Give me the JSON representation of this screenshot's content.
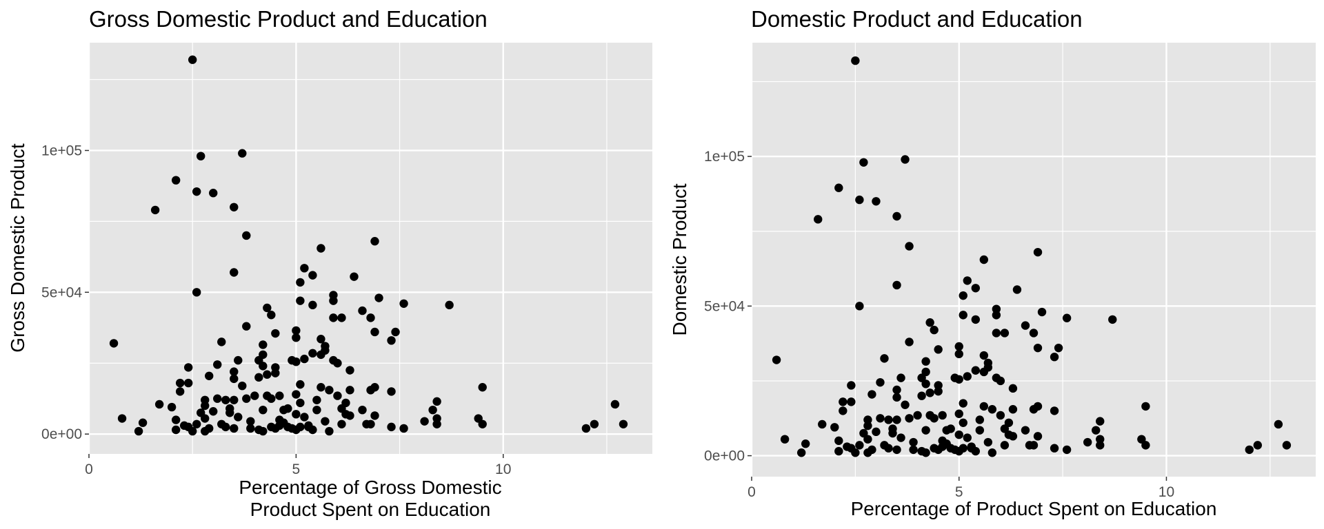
{
  "chart_data": [
    {
      "type": "scatter",
      "title": "Gross Domestic Product and Education",
      "xlabel_lines": [
        "Percentage of Gross Domestic",
        "Product Spent on Education"
      ],
      "ylabel": "Gross Domestic Product",
      "xlim": [
        0,
        13.6
      ],
      "ylim": [
        -7000,
        138000
      ],
      "x_ticks": [
        0,
        5,
        10
      ],
      "x_tick_labels": [
        "0",
        "5",
        "10"
      ],
      "y_ticks": [
        0,
        50000,
        100000
      ],
      "y_tick_labels": [
        "0e+00",
        "5e+04",
        "1e+05"
      ],
      "background": "#e5e5e5",
      "grid": true,
      "point_color": "#000000",
      "points_ref": "shared"
    },
    {
      "type": "scatter",
      "title": "Domestic Product and Education",
      "xlabel_lines": [
        "Percentage of Product Spent on Education"
      ],
      "ylabel": "Domestic Product",
      "xlim": [
        0,
        13.6
      ],
      "ylim": [
        -7000,
        138000
      ],
      "x_ticks": [
        0,
        5,
        10
      ],
      "x_tick_labels": [
        "0",
        "5",
        "10"
      ],
      "y_ticks": [
        0,
        50000,
        100000
      ],
      "y_tick_labels": [
        "0e+00",
        "5e+04",
        "1e+05"
      ],
      "background": "#e5e5e5",
      "grid": true,
      "point_color": "#000000",
      "points_ref": "shared"
    }
  ],
  "shared_points": [
    [
      0.6,
      32000
    ],
    [
      0.8,
      5500
    ],
    [
      1.2,
      1000
    ],
    [
      1.3,
      4000
    ],
    [
      1.6,
      79000
    ],
    [
      1.7,
      10500
    ],
    [
      2.0,
      9500
    ],
    [
      2.1,
      5000
    ],
    [
      2.1,
      89500
    ],
    [
      2.1,
      1500
    ],
    [
      2.2,
      18000
    ],
    [
      2.2,
      15000
    ],
    [
      2.3,
      3000
    ],
    [
      2.4,
      2500
    ],
    [
      2.4,
      23500
    ],
    [
      2.4,
      18000
    ],
    [
      2.5,
      1000
    ],
    [
      2.5,
      132000
    ],
    [
      2.6,
      85500
    ],
    [
      2.6,
      50000
    ],
    [
      2.6,
      3500
    ],
    [
      2.7,
      98000
    ],
    [
      2.7,
      7500
    ],
    [
      2.8,
      5500
    ],
    [
      2.8,
      1000
    ],
    [
      2.8,
      12000
    ],
    [
      2.8,
      10000
    ],
    [
      2.9,
      20500
    ],
    [
      2.9,
      2000
    ],
    [
      3.0,
      85000
    ],
    [
      3.0,
      8000
    ],
    [
      3.1,
      12500
    ],
    [
      3.1,
      24500
    ],
    [
      3.2,
      32500
    ],
    [
      3.2,
      3500
    ],
    [
      3.3,
      12000
    ],
    [
      3.3,
      2500
    ],
    [
      3.4,
      9000
    ],
    [
      3.4,
      7500
    ],
    [
      3.5,
      80000
    ],
    [
      3.5,
      57000
    ],
    [
      3.5,
      22000
    ],
    [
      3.5,
      19500
    ],
    [
      3.5,
      12000
    ],
    [
      3.5,
      2000
    ],
    [
      3.6,
      26000
    ],
    [
      3.6,
      6000
    ],
    [
      3.7,
      99000
    ],
    [
      3.7,
      17000
    ],
    [
      3.8,
      70000
    ],
    [
      3.8,
      38000
    ],
    [
      3.8,
      12500
    ],
    [
      3.9,
      4500
    ],
    [
      3.9,
      2000
    ],
    [
      4.0,
      13500
    ],
    [
      4.1,
      26000
    ],
    [
      4.1,
      20000
    ],
    [
      4.1,
      1500
    ],
    [
      4.2,
      31500
    ],
    [
      4.2,
      28000
    ],
    [
      4.2,
      24000
    ],
    [
      4.2,
      8500
    ],
    [
      4.2,
      1000
    ],
    [
      4.3,
      21000
    ],
    [
      4.3,
      44500
    ],
    [
      4.3,
      13500
    ],
    [
      4.4,
      42000
    ],
    [
      4.4,
      12500
    ],
    [
      4.4,
      2500
    ],
    [
      4.5,
      35500
    ],
    [
      4.5,
      23500
    ],
    [
      4.5,
      21500
    ],
    [
      4.5,
      2000
    ],
    [
      4.6,
      5000
    ],
    [
      4.6,
      3000
    ],
    [
      4.6,
      13500
    ],
    [
      4.7,
      8500
    ],
    [
      4.7,
      4000
    ],
    [
      4.8,
      9000
    ],
    [
      4.8,
      2500
    ],
    [
      4.9,
      26000
    ],
    [
      4.9,
      2000
    ],
    [
      5.0,
      36500
    ],
    [
      5.0,
      34000
    ],
    [
      5.0,
      25500
    ],
    [
      5.0,
      14000
    ],
    [
      5.0,
      7000
    ],
    [
      5.0,
      1500
    ],
    [
      5.1,
      53500
    ],
    [
      5.1,
      47000
    ],
    [
      5.1,
      17500
    ],
    [
      5.1,
      11000
    ],
    [
      5.1,
      2500
    ],
    [
      5.2,
      58500
    ],
    [
      5.2,
      26500
    ],
    [
      5.2,
      6000
    ],
    [
      5.3,
      3000
    ],
    [
      5.3,
      2500
    ],
    [
      5.4,
      56000
    ],
    [
      5.4,
      45500
    ],
    [
      5.4,
      28500
    ],
    [
      5.4,
      1500
    ],
    [
      5.5,
      12000
    ],
    [
      5.5,
      8500
    ],
    [
      5.6,
      65500
    ],
    [
      5.6,
      33500
    ],
    [
      5.6,
      28000
    ],
    [
      5.6,
      16500
    ],
    [
      5.7,
      31000
    ],
    [
      5.7,
      29500
    ],
    [
      5.7,
      4500
    ],
    [
      5.8,
      15500
    ],
    [
      5.8,
      1000
    ],
    [
      5.9,
      49000
    ],
    [
      5.9,
      47000
    ],
    [
      5.9,
      41000
    ],
    [
      5.9,
      26000
    ],
    [
      6.0,
      25000
    ],
    [
      6.0,
      13500
    ],
    [
      6.1,
      41000
    ],
    [
      6.1,
      9000
    ],
    [
      6.1,
      3500
    ],
    [
      6.2,
      7000
    ],
    [
      6.2,
      11000
    ],
    [
      6.3,
      22500
    ],
    [
      6.3,
      15500
    ],
    [
      6.3,
      6500
    ],
    [
      6.4,
      55500
    ],
    [
      6.6,
      43500
    ],
    [
      6.6,
      8500
    ],
    [
      6.7,
      3500
    ],
    [
      6.8,
      41000
    ],
    [
      6.8,
      15500
    ],
    [
      6.8,
      3500
    ],
    [
      6.9,
      68000
    ],
    [
      6.9,
      36000
    ],
    [
      6.9,
      16500
    ],
    [
      6.9,
      6500
    ],
    [
      7.0,
      48000
    ],
    [
      7.3,
      33000
    ],
    [
      7.3,
      15000
    ],
    [
      7.3,
      2500
    ],
    [
      7.4,
      36000
    ],
    [
      7.6,
      46000
    ],
    [
      7.6,
      2000
    ],
    [
      8.1,
      4500
    ],
    [
      8.3,
      8500
    ],
    [
      8.4,
      11500
    ],
    [
      8.4,
      5500
    ],
    [
      8.4,
      3500
    ],
    [
      8.7,
      45500
    ],
    [
      9.4,
      5500
    ],
    [
      9.5,
      16500
    ],
    [
      9.5,
      3500
    ],
    [
      12.0,
      2000
    ],
    [
      12.2,
      3500
    ],
    [
      12.7,
      10500
    ],
    [
      12.9,
      3500
    ]
  ]
}
